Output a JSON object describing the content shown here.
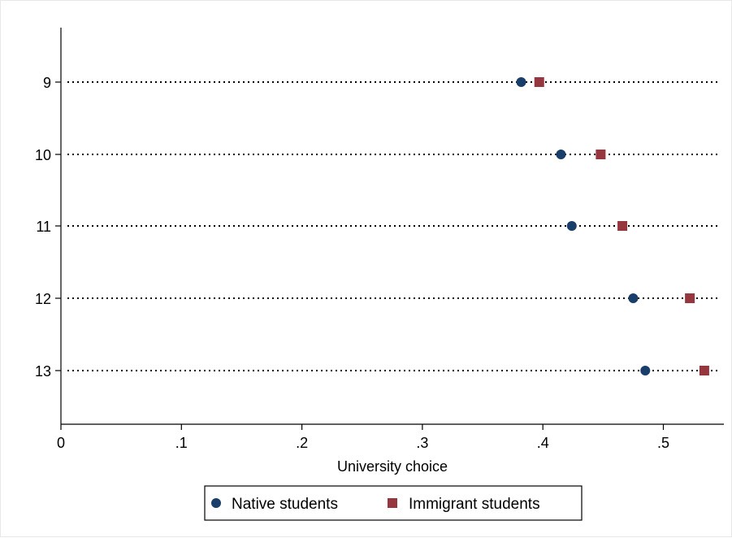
{
  "chart_data": {
    "type": "scatter",
    "orientation": "horizontal-dot",
    "xlabel": "University choice",
    "ylabel": "",
    "title": "",
    "xlim": [
      0,
      0.55
    ],
    "x_ticks": [
      0,
      0.1,
      0.2,
      0.3,
      0.4,
      0.5
    ],
    "x_tick_labels": [
      "0",
      ".1",
      ".2",
      ".3",
      ".4",
      ".5"
    ],
    "categories": [
      "9",
      "10",
      "11",
      "12",
      "13"
    ],
    "grid": "dotted horizontal lines at each category",
    "legend_position": "bottom-center",
    "series": [
      {
        "name": "Native students",
        "marker": "circle",
        "color": "#1a3e6a",
        "values": [
          0.382,
          0.415,
          0.424,
          0.475,
          0.485
        ]
      },
      {
        "name": "Immigrant students",
        "marker": "square",
        "color": "#96363e",
        "values": [
          0.397,
          0.448,
          0.466,
          0.522,
          0.534
        ]
      }
    ]
  }
}
